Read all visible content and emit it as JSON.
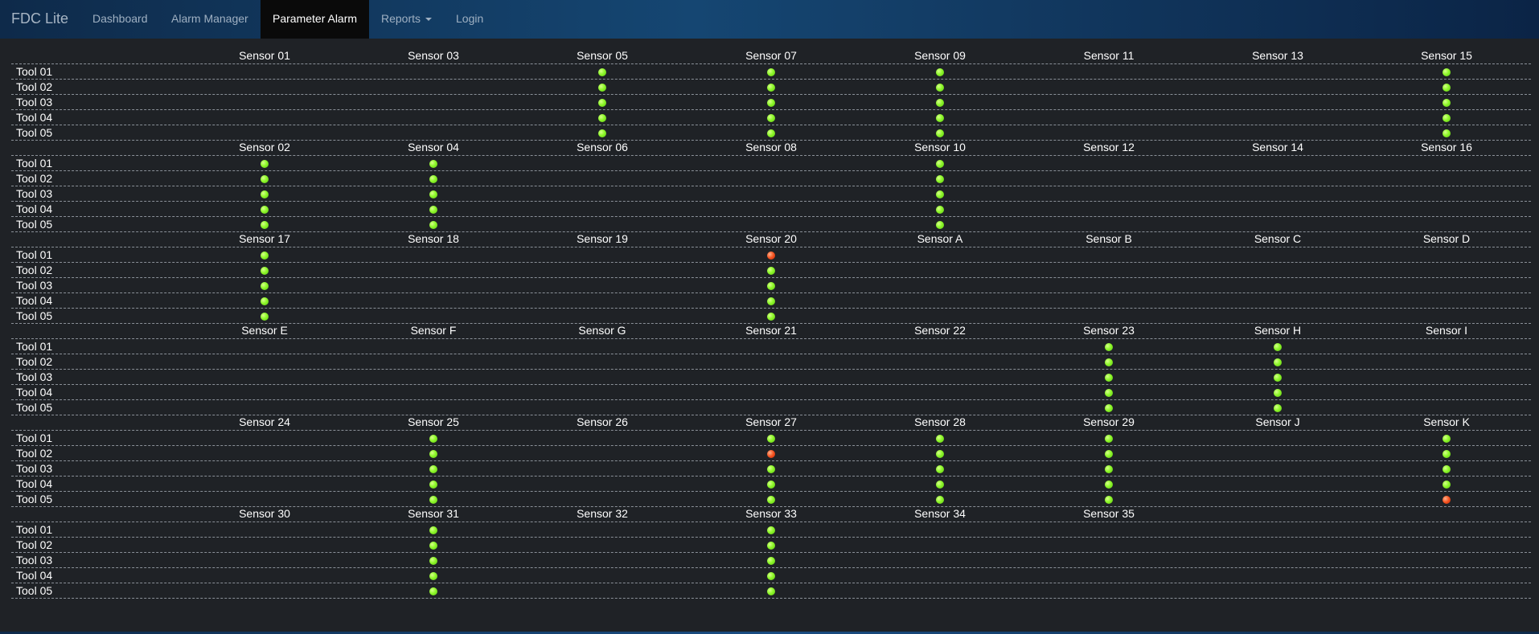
{
  "nav": {
    "brand": "FDC Lite",
    "items": [
      {
        "name": "nav-dashboard",
        "label": "Dashboard",
        "active": false,
        "dropdown": false
      },
      {
        "name": "nav-alarm-manager",
        "label": "Alarm Manager",
        "active": false,
        "dropdown": false
      },
      {
        "name": "nav-parameter-alarm",
        "label": "Parameter Alarm",
        "active": true,
        "dropdown": false
      },
      {
        "name": "nav-reports",
        "label": "Reports",
        "active": false,
        "dropdown": true
      },
      {
        "name": "nav-login",
        "label": "Login",
        "active": false,
        "dropdown": false
      }
    ]
  },
  "colors": {
    "ok": "#8ef72a",
    "alarm": "#f4521f"
  },
  "tools": [
    "Tool 01",
    "Tool 02",
    "Tool 03",
    "Tool 04",
    "Tool 05"
  ],
  "blocks": [
    {
      "sensors": [
        "Sensor 01",
        "Sensor 03",
        "Sensor 05",
        "Sensor 07",
        "Sensor 09",
        "Sensor 11",
        "Sensor 13",
        "Sensor 15"
      ],
      "status": [
        [
          "",
          "",
          "ok",
          "ok",
          "ok",
          "",
          "",
          "ok"
        ],
        [
          "",
          "",
          "ok",
          "ok",
          "ok",
          "",
          "",
          "ok"
        ],
        [
          "",
          "",
          "ok",
          "ok",
          "ok",
          "",
          "",
          "ok"
        ],
        [
          "",
          "",
          "ok",
          "ok",
          "ok",
          "",
          "",
          "ok"
        ],
        [
          "",
          "",
          "ok",
          "ok",
          "ok",
          "",
          "",
          "ok"
        ]
      ]
    },
    {
      "sensors": [
        "Sensor 02",
        "Sensor 04",
        "Sensor 06",
        "Sensor 08",
        "Sensor 10",
        "Sensor 12",
        "Sensor 14",
        "Sensor 16"
      ],
      "status": [
        [
          "ok",
          "ok",
          "",
          "",
          "ok",
          "",
          "",
          ""
        ],
        [
          "ok",
          "ok",
          "",
          "",
          "ok",
          "",
          "",
          ""
        ],
        [
          "ok",
          "ok",
          "",
          "",
          "ok",
          "",
          "",
          ""
        ],
        [
          "ok",
          "ok",
          "",
          "",
          "ok",
          "",
          "",
          ""
        ],
        [
          "ok",
          "ok",
          "",
          "",
          "ok",
          "",
          "",
          ""
        ]
      ]
    },
    {
      "sensors": [
        "Sensor 17",
        "Sensor 18",
        "Sensor 19",
        "Sensor 20",
        "Sensor A",
        "Sensor B",
        "Sensor C",
        "Sensor D"
      ],
      "status": [
        [
          "ok",
          "",
          "",
          "alarm",
          "",
          "",
          "",
          ""
        ],
        [
          "ok",
          "",
          "",
          "ok",
          "",
          "",
          "",
          ""
        ],
        [
          "ok",
          "",
          "",
          "ok",
          "",
          "",
          "",
          ""
        ],
        [
          "ok",
          "",
          "",
          "ok",
          "",
          "",
          "",
          ""
        ],
        [
          "ok",
          "",
          "",
          "ok",
          "",
          "",
          "",
          ""
        ]
      ]
    },
    {
      "sensors": [
        "Sensor E",
        "Sensor F",
        "Sensor G",
        "Sensor 21",
        "Sensor 22",
        "Sensor 23",
        "Sensor H",
        "Sensor I"
      ],
      "status": [
        [
          "",
          "",
          "",
          "",
          "",
          "ok",
          "ok",
          ""
        ],
        [
          "",
          "",
          "",
          "",
          "",
          "ok",
          "ok",
          ""
        ],
        [
          "",
          "",
          "",
          "",
          "",
          "ok",
          "ok",
          ""
        ],
        [
          "",
          "",
          "",
          "",
          "",
          "ok",
          "ok",
          ""
        ],
        [
          "",
          "",
          "",
          "",
          "",
          "ok",
          "ok",
          ""
        ]
      ]
    },
    {
      "sensors": [
        "Sensor 24",
        "Sensor 25",
        "Sensor 26",
        "Sensor 27",
        "Sensor 28",
        "Sensor 29",
        "Sensor J",
        "Sensor K"
      ],
      "status": [
        [
          "",
          "ok",
          "",
          "ok",
          "ok",
          "ok",
          "",
          "ok"
        ],
        [
          "",
          "ok",
          "",
          "alarm",
          "ok",
          "ok",
          "",
          "ok"
        ],
        [
          "",
          "ok",
          "",
          "ok",
          "ok",
          "ok",
          "",
          "ok"
        ],
        [
          "",
          "ok",
          "",
          "ok",
          "ok",
          "ok",
          "",
          "ok"
        ],
        [
          "",
          "ok",
          "",
          "ok",
          "ok",
          "ok",
          "",
          "alarm"
        ]
      ]
    },
    {
      "sensors": [
        "Sensor 30",
        "Sensor 31",
        "Sensor 32",
        "Sensor 33",
        "Sensor 34",
        "Sensor 35",
        "",
        ""
      ],
      "status": [
        [
          "",
          "ok",
          "",
          "ok",
          "",
          "",
          "",
          ""
        ],
        [
          "",
          "ok",
          "",
          "ok",
          "",
          "",
          "",
          ""
        ],
        [
          "",
          "ok",
          "",
          "ok",
          "",
          "",
          "",
          ""
        ],
        [
          "",
          "ok",
          "",
          "ok",
          "",
          "",
          "",
          ""
        ],
        [
          "",
          "ok",
          "",
          "ok",
          "",
          "",
          "",
          ""
        ]
      ]
    }
  ]
}
